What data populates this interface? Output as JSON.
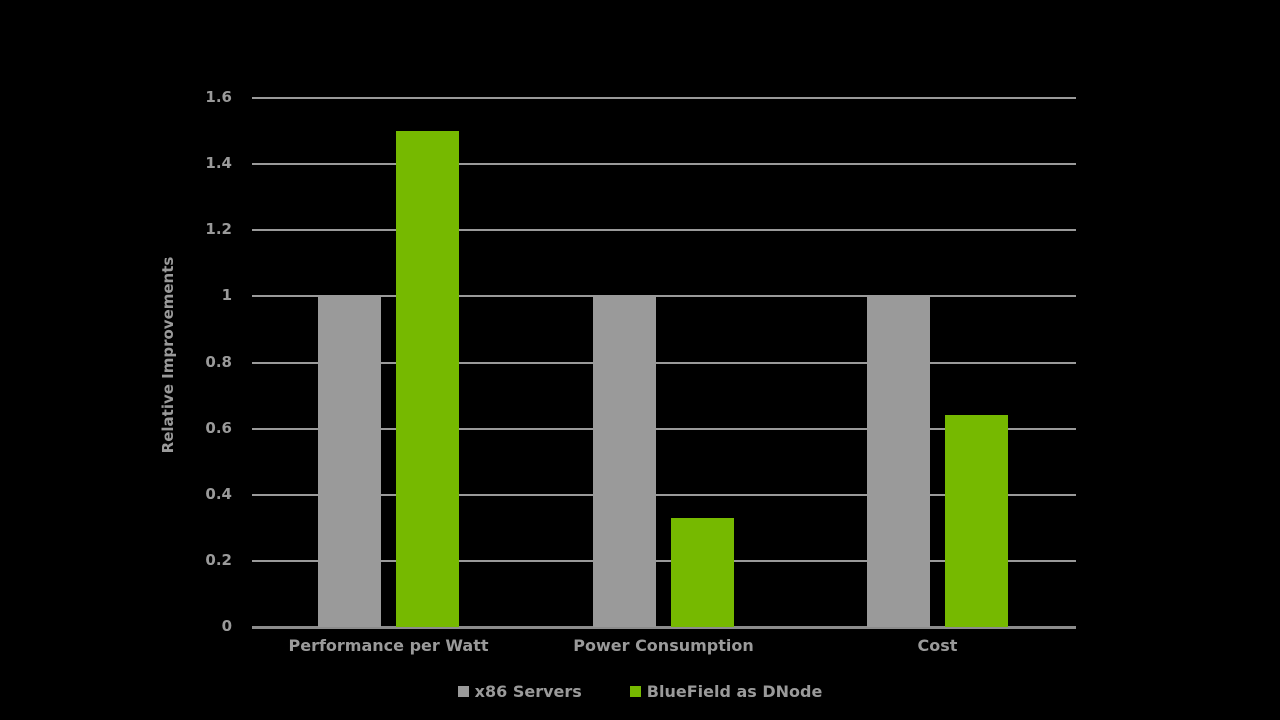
{
  "chart_data": {
    "type": "bar",
    "title": "",
    "xlabel": "",
    "ylabel": "Relative Improvements",
    "ylim": [
      0,
      1.6
    ],
    "yticks": [
      "0",
      "0.2",
      "0.4",
      "0.6",
      "0.8",
      "1",
      "1.2",
      "1.4",
      "1.6"
    ],
    "grid": true,
    "legend_position": "bottom",
    "categories": [
      "Performance per Watt",
      "Power Consumption",
      "Cost"
    ],
    "series": [
      {
        "name": "x86 Servers",
        "color": "#9a9a9a",
        "values": [
          1,
          1,
          1
        ]
      },
      {
        "name": "BlueField as DNode",
        "color": "#76b900",
        "values": [
          1.5,
          0.33,
          0.64
        ]
      }
    ]
  }
}
